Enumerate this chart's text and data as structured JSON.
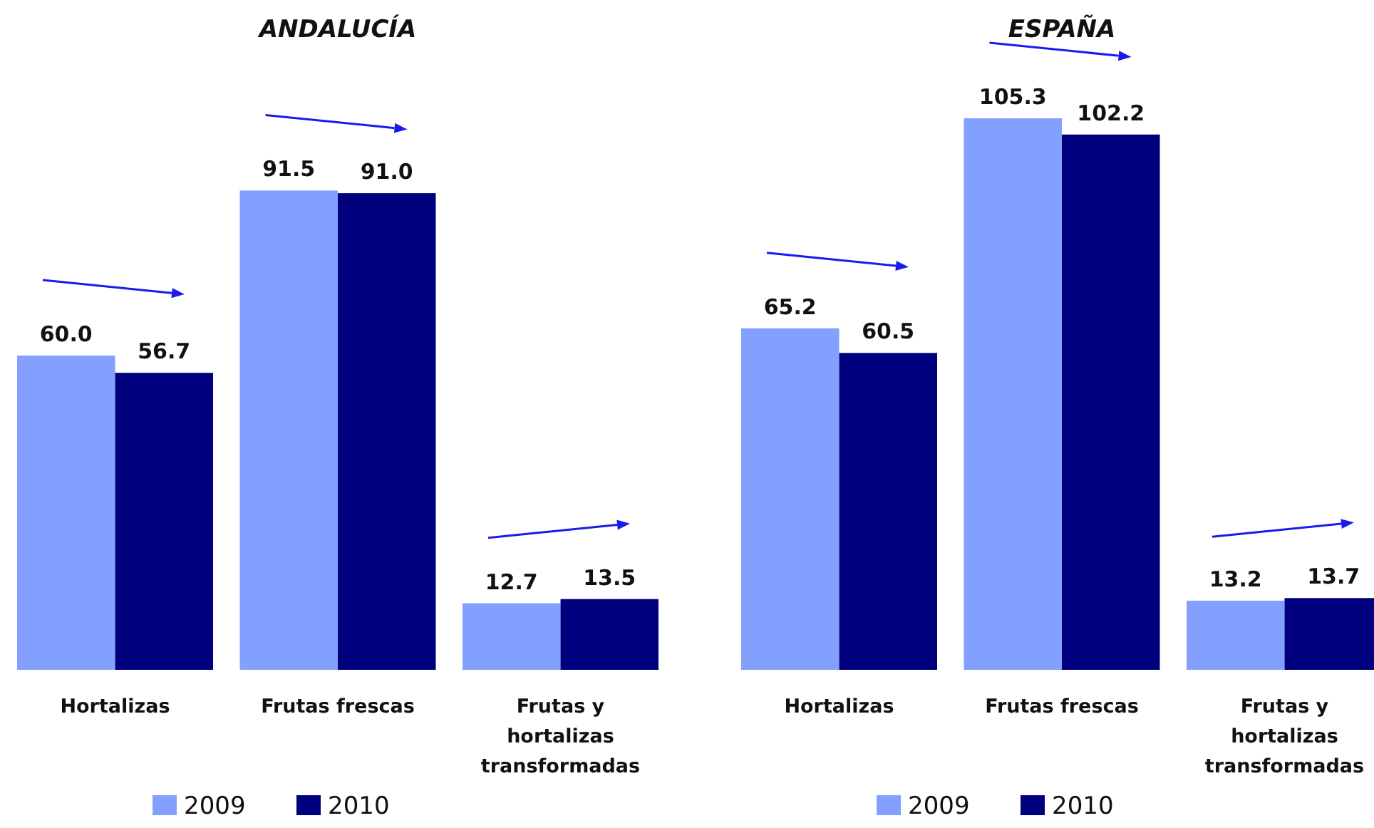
{
  "chart_data": [
    {
      "type": "bar",
      "title": "ANDALUCÍA",
      "categories": [
        "Hortalizas",
        "Frutas frescas",
        "Frutas y hortalizas transformadas"
      ],
      "legend": "bottom",
      "series": [
        {
          "name": "2009",
          "color": "#84a0ff",
          "values": [
            60.0,
            91.5,
            12.7
          ],
          "value_labels": [
            "60.0",
            "91.5",
            "12.7"
          ]
        },
        {
          "name": "2010",
          "color": "#00007f",
          "values": [
            56.7,
            91.0,
            13.5
          ],
          "value_labels": [
            "56.7",
            "91.0",
            "13.5"
          ]
        }
      ]
    },
    {
      "type": "bar",
      "title": "ESPAÑA",
      "categories": [
        "Hortalizas",
        "Frutas frescas",
        "Frutas y hortalizas transformadas"
      ],
      "legend": "bottom",
      "series": [
        {
          "name": "2009",
          "color": "#84a0ff",
          "values": [
            65.2,
            105.3,
            13.2
          ],
          "value_labels": [
            "65.2",
            "105.3",
            "13.2"
          ]
        },
        {
          "name": "2010",
          "color": "#00007f",
          "values": [
            60.5,
            102.2,
            13.7
          ],
          "value_labels": [
            "60.5",
            "102.2",
            "13.7"
          ]
        }
      ]
    }
  ]
}
